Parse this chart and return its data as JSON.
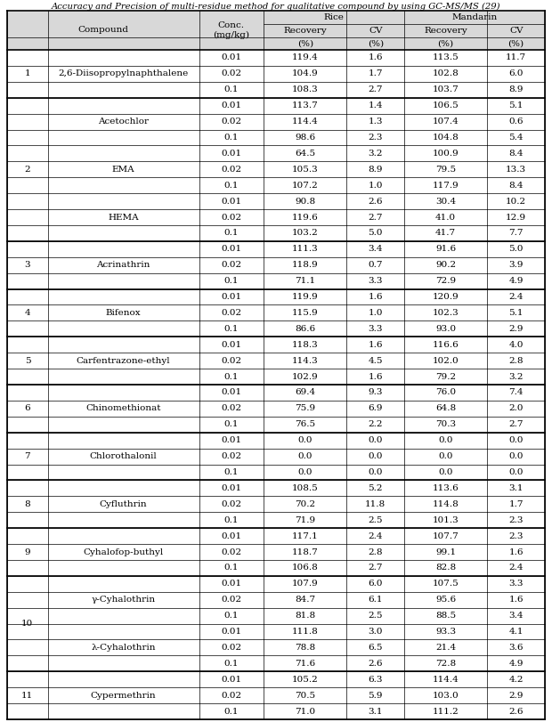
{
  "title": "Accuracy and Precision of multi-residue method for qualitative compound by using GC-MS/MS (29)",
  "header_bg": "#d8d8d8",
  "groups": [
    {
      "num": "1",
      "compounds": [
        {
          "name": "2,6-Diisopropylnaphthalene",
          "rows": [
            {
              "conc": "0.01",
              "rice_rec": "119.4",
              "rice_cv": "1.6",
              "man_rec": "113.5",
              "man_cv": "11.7"
            },
            {
              "conc": "0.02",
              "rice_rec": "104.9",
              "rice_cv": "1.7",
              "man_rec": "102.8",
              "man_cv": "6.0"
            },
            {
              "conc": "0.1",
              "rice_rec": "108.3",
              "rice_cv": "2.7",
              "man_rec": "103.7",
              "man_cv": "8.9"
            }
          ]
        }
      ]
    },
    {
      "num": "2",
      "compounds": [
        {
          "name": "Acetochlor",
          "rows": [
            {
              "conc": "0.01",
              "rice_rec": "113.7",
              "rice_cv": "1.4",
              "man_rec": "106.5",
              "man_cv": "5.1"
            },
            {
              "conc": "0.02",
              "rice_rec": "114.4",
              "rice_cv": "1.3",
              "man_rec": "107.4",
              "man_cv": "0.6"
            },
            {
              "conc": "0.1",
              "rice_rec": "98.6",
              "rice_cv": "2.3",
              "man_rec": "104.8",
              "man_cv": "5.4"
            }
          ]
        },
        {
          "name": "EMA",
          "rows": [
            {
              "conc": "0.01",
              "rice_rec": "64.5",
              "rice_cv": "3.2",
              "man_rec": "100.9",
              "man_cv": "8.4"
            },
            {
              "conc": "0.02",
              "rice_rec": "105.3",
              "rice_cv": "8.9",
              "man_rec": "79.5",
              "man_cv": "13.3"
            },
            {
              "conc": "0.1",
              "rice_rec": "107.2",
              "rice_cv": "1.0",
              "man_rec": "117.9",
              "man_cv": "8.4"
            }
          ]
        },
        {
          "name": "HEMA",
          "rows": [
            {
              "conc": "0.01",
              "rice_rec": "90.8",
              "rice_cv": "2.6",
              "man_rec": "30.4",
              "man_cv": "10.2"
            },
            {
              "conc": "0.02",
              "rice_rec": "119.6",
              "rice_cv": "2.7",
              "man_rec": "41.0",
              "man_cv": "12.9"
            },
            {
              "conc": "0.1",
              "rice_rec": "103.2",
              "rice_cv": "5.0",
              "man_rec": "41.7",
              "man_cv": "7.7"
            }
          ]
        }
      ]
    },
    {
      "num": "3",
      "compounds": [
        {
          "name": "Acrinathrin",
          "rows": [
            {
              "conc": "0.01",
              "rice_rec": "111.3",
              "rice_cv": "3.4",
              "man_rec": "91.6",
              "man_cv": "5.0"
            },
            {
              "conc": "0.02",
              "rice_rec": "118.9",
              "rice_cv": "0.7",
              "man_rec": "90.2",
              "man_cv": "3.9"
            },
            {
              "conc": "0.1",
              "rice_rec": "71.1",
              "rice_cv": "3.3",
              "man_rec": "72.9",
              "man_cv": "4.9"
            }
          ]
        }
      ]
    },
    {
      "num": "4",
      "compounds": [
        {
          "name": "Bifenox",
          "rows": [
            {
              "conc": "0.01",
              "rice_rec": "119.9",
              "rice_cv": "1.6",
              "man_rec": "120.9",
              "man_cv": "2.4"
            },
            {
              "conc": "0.02",
              "rice_rec": "115.9",
              "rice_cv": "1.0",
              "man_rec": "102.3",
              "man_cv": "5.1"
            },
            {
              "conc": "0.1",
              "rice_rec": "86.6",
              "rice_cv": "3.3",
              "man_rec": "93.0",
              "man_cv": "2.9"
            }
          ]
        }
      ]
    },
    {
      "num": "5",
      "compounds": [
        {
          "name": "Carfentrazone-ethyl",
          "rows": [
            {
              "conc": "0.01",
              "rice_rec": "118.3",
              "rice_cv": "1.6",
              "man_rec": "116.6",
              "man_cv": "4.0"
            },
            {
              "conc": "0.02",
              "rice_rec": "114.3",
              "rice_cv": "4.5",
              "man_rec": "102.0",
              "man_cv": "2.8"
            },
            {
              "conc": "0.1",
              "rice_rec": "102.9",
              "rice_cv": "1.6",
              "man_rec": "79.2",
              "man_cv": "3.2"
            }
          ]
        }
      ]
    },
    {
      "num": "6",
      "compounds": [
        {
          "name": "Chinomethionat",
          "rows": [
            {
              "conc": "0.01",
              "rice_rec": "69.4",
              "rice_cv": "9.3",
              "man_rec": "76.0",
              "man_cv": "7.4"
            },
            {
              "conc": "0.02",
              "rice_rec": "75.9",
              "rice_cv": "6.9",
              "man_rec": "64.8",
              "man_cv": "2.0"
            },
            {
              "conc": "0.1",
              "rice_rec": "76.5",
              "rice_cv": "2.2",
              "man_rec": "70.3",
              "man_cv": "2.7"
            }
          ]
        }
      ]
    },
    {
      "num": "7",
      "compounds": [
        {
          "name": "Chlorothalonil",
          "rows": [
            {
              "conc": "0.01",
              "rice_rec": "0.0",
              "rice_cv": "0.0",
              "man_rec": "0.0",
              "man_cv": "0.0"
            },
            {
              "conc": "0.02",
              "rice_rec": "0.0",
              "rice_cv": "0.0",
              "man_rec": "0.0",
              "man_cv": "0.0"
            },
            {
              "conc": "0.1",
              "rice_rec": "0.0",
              "rice_cv": "0.0",
              "man_rec": "0.0",
              "man_cv": "0.0"
            }
          ]
        }
      ]
    },
    {
      "num": "8",
      "compounds": [
        {
          "name": "Cyfluthrin",
          "rows": [
            {
              "conc": "0.01",
              "rice_rec": "108.5",
              "rice_cv": "5.2",
              "man_rec": "113.6",
              "man_cv": "3.1"
            },
            {
              "conc": "0.02",
              "rice_rec": "70.2",
              "rice_cv": "11.8",
              "man_rec": "114.8",
              "man_cv": "1.7"
            },
            {
              "conc": "0.1",
              "rice_rec": "71.9",
              "rice_cv": "2.5",
              "man_rec": "101.3",
              "man_cv": "2.3"
            }
          ]
        }
      ]
    },
    {
      "num": "9",
      "compounds": [
        {
          "name": "Cyhalofop-buthyl",
          "rows": [
            {
              "conc": "0.01",
              "rice_rec": "117.1",
              "rice_cv": "2.4",
              "man_rec": "107.7",
              "man_cv": "2.3"
            },
            {
              "conc": "0.02",
              "rice_rec": "118.7",
              "rice_cv": "2.8",
              "man_rec": "99.1",
              "man_cv": "1.6"
            },
            {
              "conc": "0.1",
              "rice_rec": "106.8",
              "rice_cv": "2.7",
              "man_rec": "82.8",
              "man_cv": "2.4"
            }
          ]
        }
      ]
    },
    {
      "num": "10",
      "compounds": [
        {
          "name": "γ-Cyhalothrin",
          "rows": [
            {
              "conc": "0.01",
              "rice_rec": "107.9",
              "rice_cv": "6.0",
              "man_rec": "107.5",
              "man_cv": "3.3"
            },
            {
              "conc": "0.02",
              "rice_rec": "84.7",
              "rice_cv": "6.1",
              "man_rec": "95.6",
              "man_cv": "1.6"
            },
            {
              "conc": "0.1",
              "rice_rec": "81.8",
              "rice_cv": "2.5",
              "man_rec": "88.5",
              "man_cv": "3.4"
            }
          ]
        },
        {
          "name": "λ-Cyhalothrin",
          "rows": [
            {
              "conc": "0.01",
              "rice_rec": "111.8",
              "rice_cv": "3.0",
              "man_rec": "93.3",
              "man_cv": "4.1"
            },
            {
              "conc": "0.02",
              "rice_rec": "78.8",
              "rice_cv": "6.5",
              "man_rec": "21.4",
              "man_cv": "3.6"
            },
            {
              "conc": "0.1",
              "rice_rec": "71.6",
              "rice_cv": "2.6",
              "man_rec": "72.8",
              "man_cv": "4.9"
            }
          ]
        }
      ]
    },
    {
      "num": "11",
      "compounds": [
        {
          "name": "Cypermethrin",
          "rows": [
            {
              "conc": "0.01",
              "rice_rec": "105.2",
              "rice_cv": "6.3",
              "man_rec": "114.4",
              "man_cv": "4.2"
            },
            {
              "conc": "0.02",
              "rice_rec": "70.5",
              "rice_cv": "5.9",
              "man_rec": "103.0",
              "man_cv": "2.9"
            },
            {
              "conc": "0.1",
              "rice_rec": "71.0",
              "rice_cv": "3.1",
              "man_rec": "111.2",
              "man_cv": "2.6"
            }
          ]
        }
      ]
    }
  ]
}
